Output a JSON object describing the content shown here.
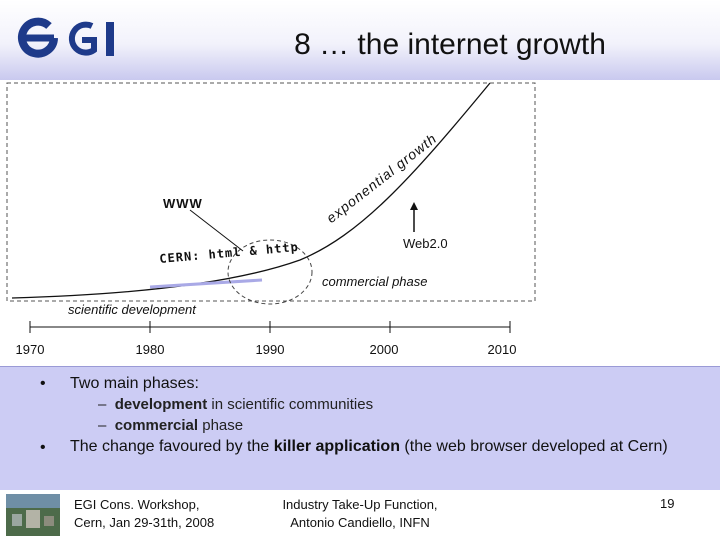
{
  "header": {
    "logo_text": "eGI",
    "title": "8 … the internet growth"
  },
  "figure": {
    "labels": {
      "www": "WWW",
      "cern": "CERN: html & http",
      "exponential": "exponential growth",
      "web20": "Web2.0",
      "commercial": "commercial phase",
      "scientific": "scientific development"
    },
    "years": [
      "1970",
      "1980",
      "1990",
      "2000",
      "2010"
    ]
  },
  "bullets": {
    "b1_marker": "•",
    "b1_text": "Two main phases:",
    "sub1_dash": "–",
    "sub1_bold": "development",
    "sub1_rest": " in scientific communities",
    "sub2_dash": "–",
    "sub2_bold": "commercial",
    "sub2_rest": " phase",
    "b2_marker": "•",
    "b2_pre": "The change favoured by the ",
    "b2_bold": "killer application",
    "b2_post": " (the web browser developed at Cern)"
  },
  "footer": {
    "left_line1": "EGI Cons. Workshop,",
    "left_line2": "Cern, Jan 29-31th, 2008",
    "mid_line1": "Industry Take-Up Function,",
    "mid_line2": "Antonio Candiello, INFN",
    "page": "19"
  },
  "colors": {
    "header_band": "#c9c9ef",
    "bullet_band": "#ccccf4",
    "logo_blue": "#1e3a8a",
    "highlight_line": "#a9a9e6"
  }
}
